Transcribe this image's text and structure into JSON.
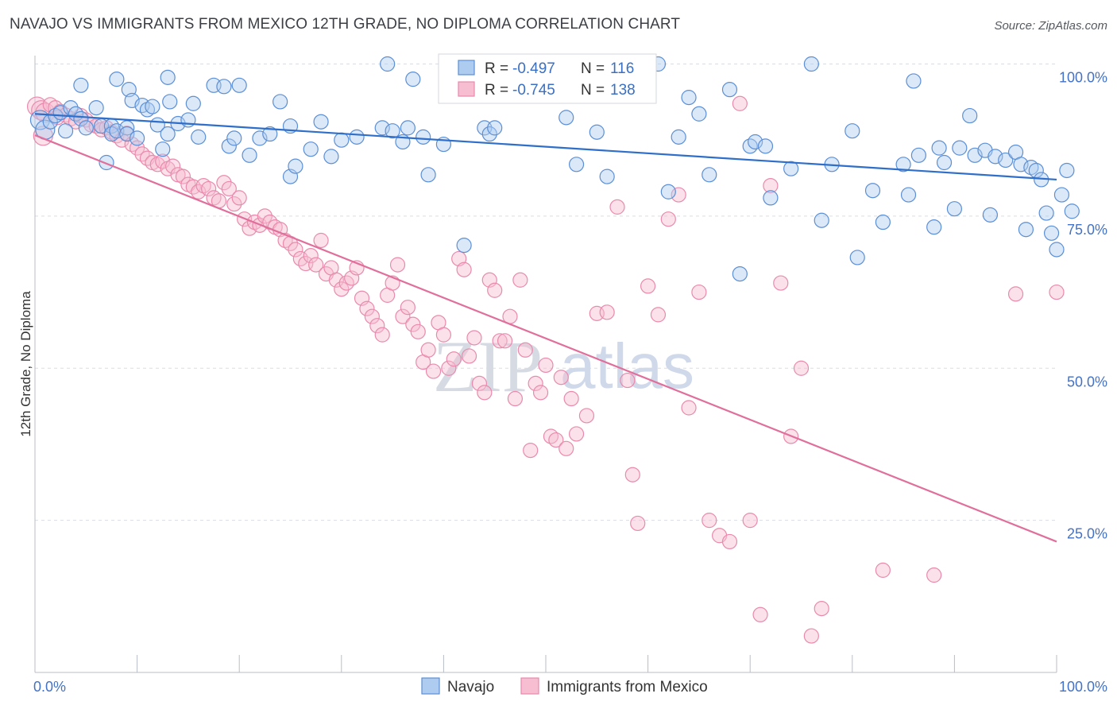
{
  "title": "NAVAJO VS IMMIGRANTS FROM MEXICO 12TH GRADE, NO DIPLOMA CORRELATION CHART",
  "source": "Source: ZipAtlas.com",
  "watermark": {
    "zip": "ZIP",
    "atlas": "atlas"
  },
  "colors": {
    "navajo_fill": "#aecbf0",
    "navajo_stroke": "#5b8fd6",
    "navajo_line": "#2f6fc9",
    "mexico_fill": "#f7bdd0",
    "mexico_stroke": "#e98aad",
    "mexico_line": "#e0709b",
    "grid": "#d9dde3",
    "tick_label": "#4472c4"
  },
  "legend": {
    "r_label": "R =",
    "n_label": "N =",
    "navajo": {
      "r": "-0.497",
      "n": "116"
    },
    "mexico": {
      "r": "-0.745",
      "n": "138"
    }
  },
  "bottom_legend": {
    "navajo": "Navajo",
    "mexico": "Immigrants from Mexico"
  },
  "chart_data": {
    "type": "scatter",
    "xlabel": "",
    "ylabel": "12th Grade, No Diploma",
    "xlim": [
      0,
      100
    ],
    "ylim": [
      0,
      100
    ],
    "x_tick_labels": {
      "left": "0.0%",
      "right": "100.0%"
    },
    "y_tick_labels": [
      "100.0%",
      "75.0%",
      "50.0%",
      "25.0%"
    ],
    "y_tick_values": [
      100,
      75,
      50,
      25
    ],
    "grid": true,
    "legend_position": "top-center",
    "series": [
      {
        "name": "Navajo",
        "r": -0.497,
        "n": 116,
        "trend": {
          "x": [
            0,
            100
          ],
          "y": [
            91.8,
            81.0
          ]
        },
        "points": [
          [
            0.5,
            90.8
          ],
          [
            1,
            89.2
          ],
          [
            1.5,
            90.5
          ],
          [
            2,
            91.5
          ],
          [
            2.5,
            92
          ],
          [
            3,
            89
          ],
          [
            3.5,
            92.8
          ],
          [
            4,
            91.8
          ],
          [
            4.5,
            91
          ],
          [
            5,
            89.5
          ],
          [
            4.5,
            96.5
          ],
          [
            6,
            92.8
          ],
          [
            6.5,
            89.8
          ],
          [
            7,
            83.8
          ],
          [
            7.5,
            89.8
          ],
          [
            7.5,
            88.5
          ],
          [
            8,
            97.5
          ],
          [
            8,
            89
          ],
          [
            9,
            89.5
          ],
          [
            9,
            88.5
          ],
          [
            9.2,
            95.8
          ],
          [
            9.5,
            94
          ],
          [
            10,
            87.8
          ],
          [
            10.5,
            93.2
          ],
          [
            11,
            92.5
          ],
          [
            11.5,
            93
          ],
          [
            12,
            90
          ],
          [
            12.5,
            86
          ],
          [
            13,
            97.8
          ],
          [
            13,
            88.5
          ],
          [
            13.2,
            93.8
          ],
          [
            14,
            90.2
          ],
          [
            15,
            90.8
          ],
          [
            15.5,
            93.5
          ],
          [
            16,
            88
          ],
          [
            17.5,
            96.5
          ],
          [
            18.5,
            96.3
          ],
          [
            19,
            86.5
          ],
          [
            19.5,
            87.8
          ],
          [
            20,
            96.5
          ],
          [
            21,
            85
          ],
          [
            22,
            87.8
          ],
          [
            23,
            88.5
          ],
          [
            24,
            93.8
          ],
          [
            25,
            81.5
          ],
          [
            25.5,
            83.2
          ],
          [
            25,
            89.8
          ],
          [
            27,
            86
          ],
          [
            28,
            90.5
          ],
          [
            29,
            84.8
          ],
          [
            30,
            87.5
          ],
          [
            31.5,
            88
          ],
          [
            34,
            89.5
          ],
          [
            34.5,
            100
          ],
          [
            35,
            89
          ],
          [
            36,
            87.2
          ],
          [
            36.5,
            89.5
          ],
          [
            37,
            97.5
          ],
          [
            38,
            88
          ],
          [
            38.5,
            81.8
          ],
          [
            40,
            86.8
          ],
          [
            42,
            70.2
          ],
          [
            44,
            89.5
          ],
          [
            44.5,
            88.5
          ],
          [
            45,
            89.5
          ],
          [
            52,
            91.2
          ],
          [
            53,
            83.5
          ],
          [
            55,
            88.8
          ],
          [
            56,
            81.5
          ],
          [
            61,
            100
          ],
          [
            62,
            79
          ],
          [
            63,
            88
          ],
          [
            64,
            94.5
          ],
          [
            65,
            91.8
          ],
          [
            66,
            81.8
          ],
          [
            68,
            95.8
          ],
          [
            69,
            65.5
          ],
          [
            70,
            86.5
          ],
          [
            70.5,
            87.2
          ],
          [
            71.5,
            86.5
          ],
          [
            72,
            78
          ],
          [
            74,
            82.8
          ],
          [
            76,
            100
          ],
          [
            77,
            74.3
          ],
          [
            78,
            83.5
          ],
          [
            80,
            89
          ],
          [
            80.5,
            68.2
          ],
          [
            82,
            79.2
          ],
          [
            83,
            74
          ],
          [
            85,
            83.5
          ],
          [
            85.5,
            78.5
          ],
          [
            86,
            97.2
          ],
          [
            86.5,
            85
          ],
          [
            88,
            73.2
          ],
          [
            88.5,
            86.2
          ],
          [
            89,
            83.8
          ],
          [
            90,
            76.2
          ],
          [
            90.5,
            86.2
          ],
          [
            91.5,
            91.5
          ],
          [
            92,
            85
          ],
          [
            93,
            85.8
          ],
          [
            93.5,
            75.2
          ],
          [
            94,
            84.8
          ],
          [
            95,
            84.2
          ],
          [
            96,
            85.5
          ],
          [
            96.5,
            83.5
          ],
          [
            97,
            72.8
          ],
          [
            97.5,
            83
          ],
          [
            98,
            82.5
          ],
          [
            98.5,
            81
          ],
          [
            99,
            75.5
          ],
          [
            99.5,
            72.2
          ],
          [
            100,
            69.5
          ],
          [
            100.5,
            78.5
          ],
          [
            101,
            82.5
          ],
          [
            101.5,
            75.8
          ]
        ]
      },
      {
        "name": "Immigrants from Mexico",
        "r": -0.745,
        "n": 138,
        "trend": {
          "x": [
            0,
            100
          ],
          "y": [
            88.3,
            21.5
          ]
        },
        "points": [
          [
            0.2,
            93
          ],
          [
            0.6,
            92.4
          ],
          [
            1,
            92
          ],
          [
            1.5,
            93.3
          ],
          [
            2,
            92.8
          ],
          [
            2.5,
            92.2
          ],
          [
            3,
            91.6
          ],
          [
            3.5,
            91
          ],
          [
            4,
            90.5
          ],
          [
            4.5,
            91.5
          ],
          [
            5,
            90.8
          ],
          [
            5.5,
            90
          ],
          [
            6,
            89.8
          ],
          [
            6.5,
            89.2
          ],
          [
            7,
            89.5
          ],
          [
            7.5,
            88.8
          ],
          [
            8,
            88.2
          ],
          [
            8.5,
            87.5
          ],
          [
            9,
            88.6
          ],
          [
            9.5,
            86.8
          ],
          [
            10,
            86.2
          ],
          [
            10.5,
            85.2
          ],
          [
            11,
            84.5
          ],
          [
            11.5,
            83.8
          ],
          [
            12,
            83.5
          ],
          [
            12.5,
            84
          ],
          [
            13,
            82.8
          ],
          [
            13.5,
            83.2
          ],
          [
            14,
            81.8
          ],
          [
            14.5,
            81.5
          ],
          [
            15,
            80.2
          ],
          [
            15.5,
            79.8
          ],
          [
            16,
            79
          ],
          [
            16.5,
            80
          ],
          [
            17,
            79.5
          ],
          [
            17.5,
            78
          ],
          [
            18,
            77.5
          ],
          [
            18.5,
            80.5
          ],
          [
            19,
            79.5
          ],
          [
            19.5,
            77
          ],
          [
            20,
            78
          ],
          [
            20.5,
            74.5
          ],
          [
            21,
            73
          ],
          [
            21.5,
            74
          ],
          [
            22,
            73.5
          ],
          [
            22.5,
            75
          ],
          [
            23,
            74
          ],
          [
            23.5,
            73.2
          ],
          [
            24,
            72.8
          ],
          [
            24.5,
            71
          ],
          [
            25,
            70.5
          ],
          [
            25.5,
            69.5
          ],
          [
            26,
            68
          ],
          [
            26.5,
            67.2
          ],
          [
            27,
            68.5
          ],
          [
            27.5,
            67
          ],
          [
            28,
            71
          ],
          [
            28.5,
            65.5
          ],
          [
            29,
            66.5
          ],
          [
            29.5,
            64.5
          ],
          [
            30,
            63
          ],
          [
            30.5,
            64
          ],
          [
            31,
            64.8
          ],
          [
            31.5,
            66.5
          ],
          [
            32,
            61.5
          ],
          [
            32.5,
            59.8
          ],
          [
            33,
            58.5
          ],
          [
            33.5,
            57
          ],
          [
            34,
            55.5
          ],
          [
            34.5,
            62
          ],
          [
            35,
            64
          ],
          [
            35.5,
            67
          ],
          [
            36,
            58.5
          ],
          [
            36.5,
            60
          ],
          [
            37,
            57.2
          ],
          [
            37.5,
            56
          ],
          [
            38,
            51
          ],
          [
            38.5,
            53
          ],
          [
            39,
            49.5
          ],
          [
            39.5,
            57.5
          ],
          [
            40,
            55.5
          ],
          [
            40.5,
            50
          ],
          [
            41,
            51.5
          ],
          [
            41.5,
            68
          ],
          [
            42,
            66.2
          ],
          [
            42.5,
            52
          ],
          [
            43,
            55
          ],
          [
            43.5,
            47.5
          ],
          [
            44,
            46
          ],
          [
            44.5,
            64.5
          ],
          [
            45,
            62.8
          ],
          [
            45.5,
            54.5
          ],
          [
            46,
            54.5
          ],
          [
            46.5,
            58.5
          ],
          [
            47,
            45
          ],
          [
            47.5,
            64.5
          ],
          [
            48,
            53
          ],
          [
            48.5,
            36.5
          ],
          [
            49,
            47.5
          ],
          [
            49.5,
            46
          ],
          [
            50,
            50.5
          ],
          [
            50.5,
            38.8
          ],
          [
            51,
            38.2
          ],
          [
            51.5,
            48.5
          ],
          [
            52,
            36.8
          ],
          [
            52.5,
            45
          ],
          [
            53,
            39.2
          ],
          [
            54,
            42.2
          ],
          [
            55,
            59
          ],
          [
            56,
            59.2
          ],
          [
            57,
            76.5
          ],
          [
            58,
            48
          ],
          [
            58.5,
            32.5
          ],
          [
            59,
            24.5
          ],
          [
            60,
            63.5
          ],
          [
            61,
            58.8
          ],
          [
            62,
            74.5
          ],
          [
            63,
            78.5
          ],
          [
            64,
            43.5
          ],
          [
            65,
            62.5
          ],
          [
            66,
            25
          ],
          [
            67,
            22.5
          ],
          [
            68,
            21.5
          ],
          [
            69,
            93.5
          ],
          [
            70,
            25
          ],
          [
            71,
            9.5
          ],
          [
            72,
            80
          ],
          [
            73,
            64
          ],
          [
            74,
            38.8
          ],
          [
            75,
            50
          ],
          [
            76,
            6
          ],
          [
            77,
            10.5
          ],
          [
            83,
            16.8
          ],
          [
            88,
            16
          ],
          [
            96,
            62.2
          ],
          [
            100,
            62.5
          ],
          [
            0.8,
            88.2
          ],
          [
            2.2,
            91.2
          ]
        ]
      }
    ]
  }
}
